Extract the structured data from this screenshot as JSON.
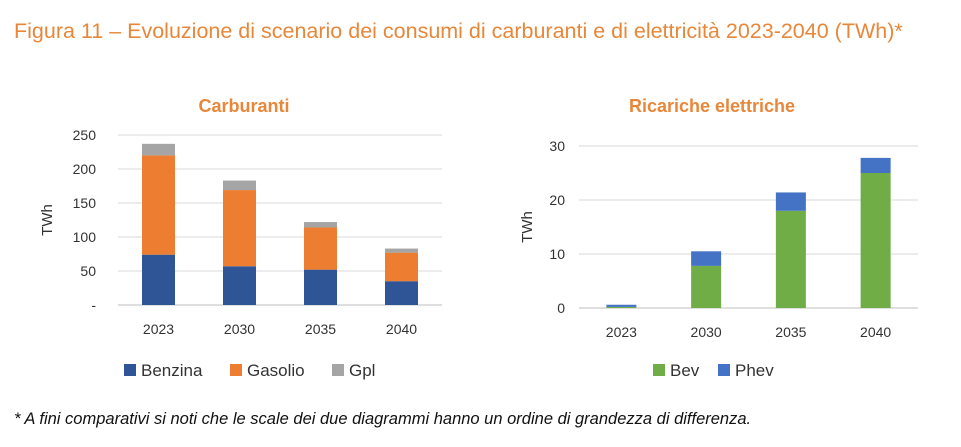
{
  "figure": {
    "title": "Figura 11 – Evoluzione di scenario dei consumi di carburanti e di elettricità 2023-2040 (TWh)*",
    "footnote": "* A fini comparativi si noti che le scale dei due diagrammi hanno un ordine di grandezza di differenza."
  },
  "chart_data": [
    {
      "type": "bar",
      "stacked": true,
      "title": "Carburanti",
      "ylabel": "TWh",
      "xlabel": "",
      "categories": [
        "2023",
        "2030",
        "2035",
        "2040"
      ],
      "series": [
        {
          "name": "Benzina",
          "color": "#2F5597",
          "values": [
            74,
            57,
            52,
            35
          ]
        },
        {
          "name": "Gasolio",
          "color": "#ED7D31",
          "values": [
            146,
            112,
            62,
            42
          ]
        },
        {
          "name": "Gpl",
          "color": "#A5A5A5",
          "values": [
            17,
            14,
            8,
            6
          ]
        }
      ],
      "ylim": [
        0,
        250
      ],
      "yticks": [
        0,
        50,
        100,
        150,
        200,
        250
      ],
      "ytick_labels": [
        "-",
        "50",
        "100",
        "150",
        "200",
        "250"
      ],
      "grid": true,
      "legend": "bottom"
    },
    {
      "type": "bar",
      "stacked": true,
      "title": "Ricariche elettriche",
      "ylabel": "TWh",
      "xlabel": "",
      "categories": [
        "2023",
        "2030",
        "2035",
        "2040"
      ],
      "series": [
        {
          "name": "Bev",
          "color": "#70AD47",
          "values": [
            0.2,
            7.8,
            18,
            25
          ]
        },
        {
          "name": "Phev",
          "color": "#4472C4",
          "values": [
            0.4,
            2.7,
            3.4,
            2.8
          ]
        }
      ],
      "ylim": [
        0,
        30
      ],
      "yticks": [
        0,
        10,
        20,
        30
      ],
      "ytick_labels": [
        "0",
        "10",
        "20",
        "30"
      ],
      "grid": true,
      "legend": "bottom"
    }
  ]
}
